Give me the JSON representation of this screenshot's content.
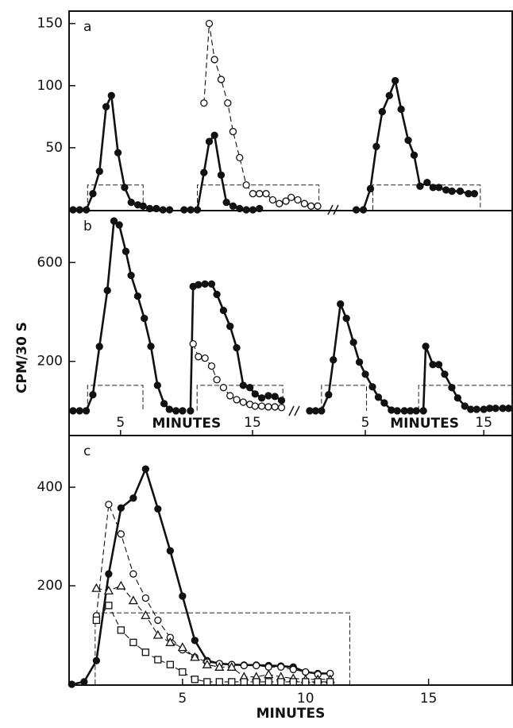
{
  "figure": {
    "xlabel": "MINUTES",
    "ylabel": "CPM/30 S"
  },
  "chart_data": [
    {
      "type": "line",
      "panel_label": "a",
      "xlim": [
        1.1,
        20.5
      ],
      "ylim": [
        0,
        160
      ],
      "yticks": [
        50,
        100,
        150
      ],
      "pulses": [
        {
          "x": [
            2.5,
            6.7
          ],
          "height": 20
        },
        {
          "x": [
            10.8,
            20.0
          ],
          "height": 20
        }
      ],
      "series": [
        {
          "marker": "filled",
          "x": [
            1.4,
            1.9,
            2.4,
            2.9,
            3.4,
            3.9,
            4.3,
            4.8,
            5.3,
            5.8,
            6.3,
            6.7,
            7.2,
            7.7,
            8.2,
            8.7
          ],
          "values": [
            0,
            0,
            0,
            13,
            31,
            83,
            92,
            46,
            18,
            6,
            4,
            3,
            1,
            1,
            0,
            0
          ]
        },
        {
          "marker": "filled",
          "x": [
            9.8,
            10.3,
            10.8,
            11.3,
            11.7,
            12.1,
            12.6,
            13.0,
            13.5,
            14.0,
            14.5,
            15.0,
            15.5
          ],
          "values": [
            0,
            0,
            0,
            30,
            55,
            60,
            28,
            6,
            3,
            1,
            0,
            0,
            1
          ]
        },
        {
          "marker": "open",
          "x": [
            11.3,
            11.7,
            12.1,
            12.6,
            13.1,
            13.5,
            14.0,
            14.5,
            15.0,
            15.5,
            16.0,
            16.5,
            17.0,
            17.5,
            17.9,
            18.4,
            18.9,
            19.4,
            19.9
          ],
          "values": [
            86,
            150,
            121,
            105,
            86,
            63,
            42,
            20,
            13,
            13,
            13,
            8,
            5,
            7,
            10,
            8,
            5,
            3,
            3
          ]
        }
      ]
    },
    {
      "type": "line",
      "xlim": [
        2.95,
        17.4
      ],
      "ylim": [
        0,
        160
      ],
      "pulses": [
        {
          "x": [
            5.6,
            14.7
          ],
          "height": 20
        }
      ],
      "series": [
        {
          "marker": "filled",
          "x": [
            4.2,
            4.8,
            5.4,
            5.9,
            6.4,
            7.0,
            7.5,
            8.0,
            8.6,
            9.1,
            9.6,
            10.2,
            10.7,
            11.2,
            11.8,
            12.3,
            13.0,
            13.7,
            14.2
          ],
          "values": [
            0,
            0,
            17,
            51,
            79,
            92,
            104,
            81,
            56,
            44,
            19,
            22,
            18,
            18,
            16,
            15,
            15,
            13,
            13
          ]
        }
      ]
    },
    {
      "type": "line",
      "panel_label": "b",
      "xlim": [
        1.1,
        17.65
      ],
      "ylim": [
        -100,
        810
      ],
      "yticks": [
        200,
        600
      ],
      "xticks": [
        5,
        15
      ],
      "xlabel": "MINUTES",
      "pulses": [
        {
          "x": [
            2.5,
            6.7
          ],
          "height": 103
        },
        {
          "x": [
            10.8,
            17.3
          ],
          "height": 103
        }
      ],
      "series": [
        {
          "marker": "filled",
          "x": [
            1.4,
            1.9,
            2.4,
            2.9,
            3.4,
            4.0,
            4.5,
            4.9,
            5.4,
            5.8,
            6.3,
            6.8,
            7.3,
            7.8,
            8.3,
            8.7,
            9.2,
            9.7
          ],
          "values": [
            0,
            0,
            0,
            65,
            260,
            487,
            768,
            752,
            645,
            548,
            464,
            374,
            261,
            103,
            29,
            6,
            0,
            0
          ]
        },
        {
          "marker": "filled",
          "x": [
            10.3,
            10.5,
            10.9,
            11.4,
            11.9,
            12.3,
            12.8,
            13.3,
            13.8,
            14.3,
            14.8,
            15.2,
            15.7,
            16.2,
            16.7,
            17.2
          ],
          "values": [
            0,
            503,
            510,
            513,
            513,
            471,
            406,
            342,
            255,
            103,
            94,
            68,
            52,
            61,
            58,
            42
          ]
        },
        {
          "marker": "open",
          "x": [
            10.5,
            10.9,
            11.4,
            11.9,
            12.3,
            12.8,
            13.3,
            13.8,
            14.3,
            14.8,
            15.2,
            15.7,
            16.2,
            16.7,
            17.2
          ],
          "values": [
            271,
            219,
            213,
            181,
            126,
            94,
            61,
            45,
            35,
            26,
            19,
            19,
            16,
            16,
            13
          ]
        }
      ]
    },
    {
      "type": "line",
      "xlim": [
        -0.5,
        17.4
      ],
      "ylim": [
        -100,
        810
      ],
      "xticks": [
        5,
        15
      ],
      "xlabel": "MINUTES",
      "pulses": [
        {
          "x": [
            1.3,
            5.1
          ],
          "height": 103
        },
        {
          "x": [
            9.5,
            17.4
          ],
          "height": 103
        }
      ],
      "series": [
        {
          "marker": "filled",
          "x": [
            0.3,
            0.8,
            1.3,
            1.9,
            2.3,
            2.9,
            3.4,
            4.0,
            4.5,
            5.0,
            5.6,
            6.1,
            6.6,
            7.2,
            7.7,
            8.3,
            8.8,
            9.3,
            9.9,
            10.1,
            10.7,
            11.2,
            11.7,
            12.3,
            12.8,
            13.4,
            13.9,
            14.4,
            15.0,
            15.5,
            16.0,
            16.6,
            17.1
          ],
          "values": [
            0,
            0,
            0,
            65,
            206,
            432,
            374,
            277,
            197,
            148,
            97,
            55,
            32,
            3,
            0,
            0,
            0,
            0,
            0,
            261,
            187,
            187,
            148,
            94,
            52,
            19,
            6,
            6,
            6,
            10,
            10,
            10,
            10
          ]
        }
      ]
    },
    {
      "type": "line",
      "panel_label": "c",
      "xlim": [
        0.39,
        18.4
      ],
      "ylim": [
        0,
        505
      ],
      "yticks": [
        200,
        400
      ],
      "xticks": [
        5,
        10,
        15
      ],
      "pulses": [
        {
          "x": [
            1.45,
            11.8
          ],
          "height": 145
        }
      ],
      "series": [
        {
          "marker": "filled",
          "x": [
            0.5,
            1.0,
            1.5,
            2.0,
            2.5,
            3.0,
            3.5,
            4.0,
            4.5,
            5.0,
            5.5,
            6.0,
            6.5,
            7.0,
            7.5,
            8.0,
            8.5,
            9.0,
            9.5,
            10.0,
            10.5,
            11.0
          ],
          "values": [
            0,
            5,
            48,
            224,
            358,
            378,
            437,
            356,
            271,
            179,
            89,
            48,
            42,
            40,
            39,
            39,
            38,
            37,
            35,
            25,
            22,
            22
          ]
        },
        {
          "marker": "open",
          "x": [
            1.5,
            2.0,
            2.5,
            3.0,
            3.5,
            4.0,
            4.5,
            5.0,
            5.5,
            6.0,
            6.5,
            7.0,
            7.5,
            8.0,
            8.5,
            9.0,
            9.5,
            10.0,
            10.5,
            11.0
          ],
          "values": [
            139,
            365,
            305,
            224,
            175,
            130,
            95,
            70,
            55,
            45,
            42,
            40,
            38,
            38,
            35,
            35,
            30,
            25,
            20,
            22
          ]
        },
        {
          "marker": "triangle",
          "x": [
            1.5,
            2.0,
            2.5,
            3.0,
            3.5,
            4.0,
            4.5,
            5.0,
            5.5,
            6.0,
            6.5,
            7.0,
            7.5,
            8.0,
            8.5,
            9.0,
            9.5,
            10.0,
            10.5,
            11.0
          ],
          "values": [
            195,
            190,
            200,
            170,
            140,
            100,
            85,
            75,
            55,
            40,
            35,
            35,
            15,
            15,
            20,
            15,
            12,
            10,
            10,
            10
          ]
        },
        {
          "marker": "square",
          "x": [
            1.5,
            2.0,
            2.5,
            3.0,
            3.5,
            4.0,
            4.5,
            5.0,
            5.5,
            6.0,
            6.5,
            7.0,
            7.5,
            8.0,
            8.5,
            9.0,
            9.5,
            10.0,
            10.5,
            11.0
          ],
          "values": [
            130,
            160,
            110,
            85,
            65,
            50,
            40,
            25,
            10,
            5,
            5,
            5,
            5,
            5,
            5,
            5,
            5,
            5,
            5,
            5
          ]
        }
      ]
    }
  ]
}
